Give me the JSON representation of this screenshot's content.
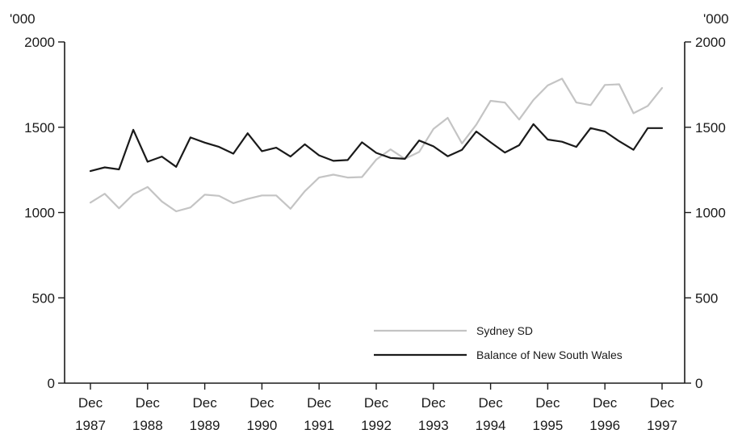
{
  "chart_data": {
    "type": "line",
    "y_unit_left": "'000",
    "y_unit_right": "'000",
    "ylim": [
      0,
      2000
    ],
    "y_ticks": [
      0,
      500,
      1000,
      1500,
      2000
    ],
    "y_tick_labels": [
      "0",
      "500",
      "1000",
      "1500",
      "2000"
    ],
    "x_tick_labels": [
      {
        "month": "Dec",
        "year": "1987"
      },
      {
        "month": "Dec",
        "year": "1988"
      },
      {
        "month": "Dec",
        "year": "1989"
      },
      {
        "month": "Dec",
        "year": "1990"
      },
      {
        "month": "Dec",
        "year": "1991"
      },
      {
        "month": "Dec",
        "year": "1992"
      },
      {
        "month": "Dec",
        "year": "1993"
      },
      {
        "month": "Dec",
        "year": "1994"
      },
      {
        "month": "Dec",
        "year": "1995"
      },
      {
        "month": "Dec",
        "year": "1996"
      },
      {
        "month": "Dec",
        "year": "1997"
      }
    ],
    "legend_position": "bottom-right",
    "series": [
      {
        "name": "Sydney SD",
        "color": "#c4c4c4",
        "values": [
          1058,
          1110,
          1025,
          1107,
          1150,
          1065,
          1007,
          1030,
          1105,
          1098,
          1055,
          1080,
          1100,
          1100,
          1022,
          1125,
          1205,
          1222,
          1205,
          1208,
          1310,
          1370,
          1315,
          1355,
          1490,
          1555,
          1405,
          1515,
          1655,
          1645,
          1545,
          1660,
          1745,
          1785,
          1645,
          1630,
          1748,
          1752,
          1582,
          1625,
          1730
        ]
      },
      {
        "name": "Balance of New South Wales",
        "color": "#1a1a1a",
        "values": [
          1243,
          1265,
          1253,
          1485,
          1298,
          1328,
          1268,
          1440,
          1410,
          1385,
          1345,
          1465,
          1360,
          1380,
          1328,
          1400,
          1335,
          1303,
          1308,
          1412,
          1350,
          1320,
          1315,
          1422,
          1388,
          1330,
          1368,
          1475,
          1412,
          1352,
          1395,
          1518,
          1428,
          1415,
          1385,
          1495,
          1475,
          1418,
          1368,
          1495,
          1495
        ]
      }
    ]
  }
}
